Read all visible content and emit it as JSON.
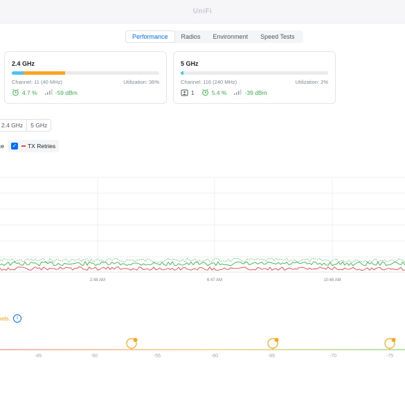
{
  "app": {
    "title": "UniFi"
  },
  "tabs": [
    {
      "label": "Performance",
      "active": true
    },
    {
      "label": "Radios",
      "active": false
    },
    {
      "label": "Environment",
      "active": false
    },
    {
      "label": "Speed Tests",
      "active": false
    }
  ],
  "radios": [
    {
      "title": "2.4 GHz",
      "channel": "Channel: 11 (40 MHz)",
      "utilization": "Utilization: 36%",
      "utilization_segments": [
        {
          "color": "#4fc3f7",
          "fraction": 0.08
        },
        {
          "color": "#f5a623",
          "fraction": 0.28
        }
      ],
      "clients": "",
      "retry": "4.7 %",
      "signal": "-59 dBm"
    },
    {
      "title": "5 GHz",
      "channel": "Channel: 116 (240 MHz)",
      "utilization": "Utilization: 2%",
      "utilization_segments": [
        {
          "color": "#4fc3f7",
          "fraction": 0.02
        }
      ],
      "clients": "1",
      "retry": "5.4 %",
      "signal": "-39 dBm"
    }
  ],
  "band_selector": {
    "options": [
      "2.4 GHz",
      "5 GHz"
    ]
  },
  "chart_legend": {
    "partial_label": "ce",
    "tx_retries_label": "TX Retries",
    "tx_retries_color": "#e84545"
  },
  "chart_data": {
    "type": "line",
    "x_ticks": [
      "2:48 AM",
      "6:47 AM",
      "10:46 AM"
    ],
    "series": [
      {
        "name": "TX Retries",
        "color": "#e84545"
      }
    ]
  },
  "channel_note": {
    "text": "nels.",
    "color": "#f5a623"
  },
  "signal_scale": {
    "ticks": [
      "-45",
      "-50",
      "-55",
      "-60",
      "-65",
      "-70",
      "-75"
    ]
  }
}
